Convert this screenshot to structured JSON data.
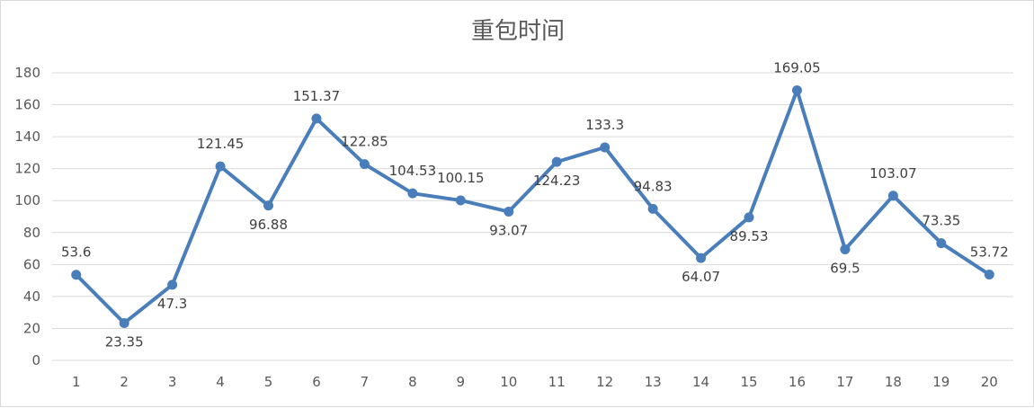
{
  "chart_data": {
    "type": "line",
    "title": "重包时间",
    "xlabel": "",
    "ylabel": "",
    "categories": [
      "1",
      "2",
      "3",
      "4",
      "5",
      "6",
      "7",
      "8",
      "9",
      "10",
      "11",
      "12",
      "13",
      "14",
      "15",
      "16",
      "17",
      "18",
      "19",
      "20"
    ],
    "series": [
      {
        "values": [
          53.6,
          23.35,
          47.3,
          121.45,
          96.88,
          151.37,
          122.85,
          104.53,
          100.15,
          93.07,
          124.23,
          133.3,
          94.83,
          64.07,
          89.53,
          169.05,
          69.5,
          103.07,
          73.35,
          53.72
        ],
        "data_labels": [
          "53.6",
          "23.35",
          "47.3",
          "121.45",
          "96.88",
          "151.37",
          "122.85",
          "104.53",
          "100.15",
          "93.07",
          "124.23",
          "133.3",
          "94.83",
          "64.07",
          "89.53",
          "169.05",
          "69.5",
          "103.07",
          "73.35",
          "53.72"
        ],
        "color": "#4a7ebb"
      }
    ],
    "ylim": [
      0,
      180
    ],
    "yticks": [
      "0",
      "20",
      "40",
      "60",
      "80",
      "100",
      "120",
      "140",
      "160",
      "180"
    ],
    "grid": "horizontal",
    "legend": "none",
    "gridline_color": "#d9d9d9",
    "text_color": "#595959"
  }
}
